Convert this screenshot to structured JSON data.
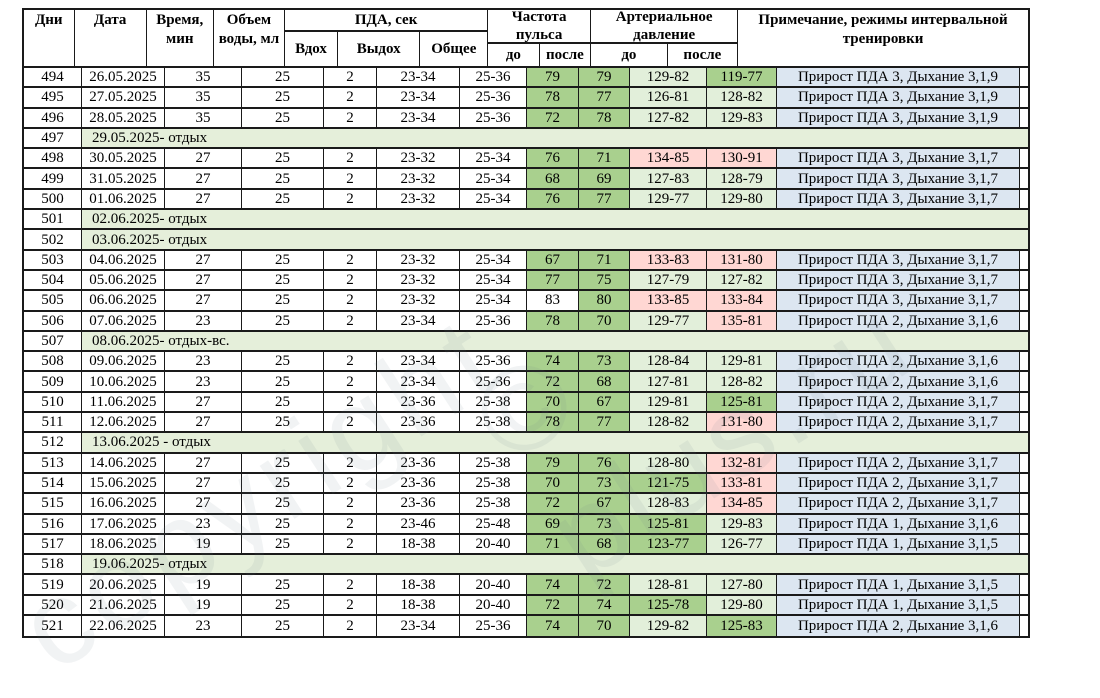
{
  "watermark": {
    "text1": "copyright",
    "text2": "© plus.ru"
  },
  "palette": {
    "pulse_green": "#a9d08e",
    "light_green": "#e2efda",
    "alert_pink": "#ffd7d3",
    "note_blue": "#dce6f1",
    "rest_green": "#e5efda"
  },
  "table": {
    "header": {
      "days": "Дни",
      "date": "Дата",
      "time": "Время, мин",
      "water": "Объем воды, мл",
      "pda_group": "ПДА, сек",
      "inhale": "Вдох",
      "exhale": "Выдох",
      "total": "Общее",
      "pulse_group": "Частота пульса",
      "bp_group": "Артериальное давление",
      "before": "до",
      "after": "после",
      "note": "Примечание, режимы интервальной тренировки"
    },
    "rows": [
      {
        "type": "data",
        "day": "494",
        "date": "26.05.2025",
        "time": "35",
        "water": "25",
        "inhale": "2",
        "exhale": "23-34",
        "total": "25-36",
        "pulse_before": "79",
        "pulse_after": "79",
        "bp_before": "129-82",
        "bp_after": "119-77",
        "note": "Прирост ПДА 3, Дыхание 3,1,9",
        "colors": {
          "pb": "g",
          "pa": "g",
          "bb": "lg",
          "ba": "g"
        }
      },
      {
        "type": "data",
        "day": "495",
        "date": "27.05.2025",
        "time": "35",
        "water": "25",
        "inhale": "2",
        "exhale": "23-34",
        "total": "25-36",
        "pulse_before": "78",
        "pulse_after": "77",
        "bp_before": "126-81",
        "bp_after": "128-82",
        "note": "Прирост ПДА 3, Дыхание 3,1,9",
        "colors": {
          "pb": "g",
          "pa": "g",
          "bb": "lg",
          "ba": "lg"
        }
      },
      {
        "type": "data",
        "day": "496",
        "date": "28.05.2025",
        "time": "35",
        "water": "25",
        "inhale": "2",
        "exhale": "23-34",
        "total": "25-36",
        "pulse_before": "72",
        "pulse_after": "78",
        "bp_before": "127-82",
        "bp_after": "129-83",
        "note": "Прирост ПДА 3, Дыхание 3,1,9",
        "colors": {
          "pb": "g",
          "pa": "g",
          "bb": "lg",
          "ba": "lg"
        }
      },
      {
        "type": "rest",
        "day": "497",
        "text": "29.05.2025- отдых"
      },
      {
        "type": "data",
        "day": "498",
        "date": "30.05.2025",
        "time": "27",
        "water": "25",
        "inhale": "2",
        "exhale": "23-32",
        "total": "25-34",
        "pulse_before": "76",
        "pulse_after": "71",
        "bp_before": "134-85",
        "bp_after": "130-91",
        "note": "Прирост ПДА 3, Дыхание 3,1,7",
        "colors": {
          "pb": "g",
          "pa": "g",
          "bb": "p",
          "ba": "p"
        }
      },
      {
        "type": "data",
        "day": "499",
        "date": "31.05.2025",
        "time": "27",
        "water": "25",
        "inhale": "2",
        "exhale": "23-32",
        "total": "25-34",
        "pulse_before": "68",
        "pulse_after": "69",
        "bp_before": "127-83",
        "bp_after": "128-79",
        "note": "Прирост ПДА 3, Дыхание 3,1,7",
        "colors": {
          "pb": "g",
          "pa": "g",
          "bb": "lg",
          "ba": "lg"
        }
      },
      {
        "type": "data",
        "day": "500",
        "date": "01.06.2025",
        "time": "27",
        "water": "25",
        "inhale": "2",
        "exhale": "23-32",
        "total": "25-34",
        "pulse_before": "76",
        "pulse_after": "77",
        "bp_before": "129-77",
        "bp_after": "129-80",
        "note": "Прирост ПДА 3, Дыхание 3,1,7",
        "colors": {
          "pb": "g",
          "pa": "g",
          "bb": "lg",
          "ba": "lg"
        }
      },
      {
        "type": "rest",
        "day": "501",
        "text": "02.06.2025- отдых"
      },
      {
        "type": "rest",
        "day": "502",
        "text": "03.06.2025- отдых"
      },
      {
        "type": "data",
        "day": "503",
        "date": "04.06.2025",
        "time": "27",
        "water": "25",
        "inhale": "2",
        "exhale": "23-32",
        "total": "25-34",
        "pulse_before": "67",
        "pulse_after": "71",
        "bp_before": "133-83",
        "bp_after": "131-80",
        "note": "Прирост ПДА 3, Дыхание 3,1,7",
        "colors": {
          "pb": "g",
          "pa": "g",
          "bb": "p",
          "ba": "p"
        }
      },
      {
        "type": "data",
        "day": "504",
        "date": "05.06.2025",
        "time": "27",
        "water": "25",
        "inhale": "2",
        "exhale": "23-32",
        "total": "25-34",
        "pulse_before": "77",
        "pulse_after": "75",
        "bp_before": "127-79",
        "bp_after": "127-82",
        "note": "Прирост ПДА 3, Дыхание 3,1,7",
        "colors": {
          "pb": "g",
          "pa": "g",
          "bb": "lg",
          "ba": "lg"
        }
      },
      {
        "type": "data",
        "day": "505",
        "date": "06.06.2025",
        "time": "27",
        "water": "25",
        "inhale": "2",
        "exhale": "23-32",
        "total": "25-34",
        "pulse_before": "83",
        "pulse_after": "80",
        "bp_before": "133-85",
        "bp_after": "133-84",
        "note": "Прирост ПДА 3, Дыхание 3,1,7",
        "colors": {
          "pb": "w",
          "pa": "g",
          "bb": "p",
          "ba": "p"
        }
      },
      {
        "type": "data",
        "day": "506",
        "date": "07.06.2025",
        "time": "23",
        "water": "25",
        "inhale": "2",
        "exhale": "23-34",
        "total": "25-36",
        "pulse_before": "78",
        "pulse_after": "70",
        "bp_before": "129-77",
        "bp_after": "135-81",
        "note": "Прирост ПДА 2, Дыхание 3,1,6",
        "colors": {
          "pb": "g",
          "pa": "g",
          "bb": "lg",
          "ba": "p"
        }
      },
      {
        "type": "rest",
        "day": "507",
        "text": "08.06.2025- отдых-вс."
      },
      {
        "type": "data",
        "day": "508",
        "date": "09.06.2025",
        "time": "23",
        "water": "25",
        "inhale": "2",
        "exhale": "23-34",
        "total": "25-36",
        "pulse_before": "74",
        "pulse_after": "73",
        "bp_before": "128-84",
        "bp_after": "129-81",
        "note": "Прирост ПДА 2, Дыхание 3,1,6",
        "colors": {
          "pb": "g",
          "pa": "g",
          "bb": "lg",
          "ba": "lg"
        }
      },
      {
        "type": "data",
        "day": "509",
        "date": "10.06.2025",
        "time": "23",
        "water": "25",
        "inhale": "2",
        "exhale": "23-34",
        "total": "25-36",
        "pulse_before": "72",
        "pulse_after": "68",
        "bp_before": "127-81",
        "bp_after": "128-82",
        "note": "Прирост ПДА 2, Дыхание 3,1,6",
        "colors": {
          "pb": "g",
          "pa": "g",
          "bb": "lg",
          "ba": "lg"
        }
      },
      {
        "type": "data",
        "day": "510",
        "date": "11.06.2025",
        "time": "27",
        "water": "25",
        "inhale": "2",
        "exhale": "23-36",
        "total": "25-38",
        "pulse_before": "70",
        "pulse_after": "67",
        "bp_before": "129-81",
        "bp_after": "125-81",
        "note": "Прирост ПДА 2, Дыхание 3,1,7",
        "colors": {
          "pb": "g",
          "pa": "g",
          "bb": "lg",
          "ba": "g"
        }
      },
      {
        "type": "data",
        "day": "511",
        "date": "12.06.2025",
        "time": "27",
        "water": "25",
        "inhale": "2",
        "exhale": "23-36",
        "total": "25-38",
        "pulse_before": "78",
        "pulse_after": "77",
        "bp_before": "128-82",
        "bp_after": "131-80",
        "note": "Прирост ПДА 2, Дыхание 3,1,7",
        "colors": {
          "pb": "g",
          "pa": "g",
          "bb": "lg",
          "ba": "p"
        }
      },
      {
        "type": "rest",
        "day": "512",
        "text": "13.06.2025 - отдых"
      },
      {
        "type": "data",
        "day": "513",
        "date": "14.06.2025",
        "time": "27",
        "water": "25",
        "inhale": "2",
        "exhale": "23-36",
        "total": "25-38",
        "pulse_before": "79",
        "pulse_after": "76",
        "bp_before": "128-80",
        "bp_after": "132-81",
        "note": "Прирост ПДА 2, Дыхание 3,1,7",
        "colors": {
          "pb": "g",
          "pa": "g",
          "bb": "lg",
          "ba": "p"
        }
      },
      {
        "type": "data",
        "day": "514",
        "date": "15.06.2025",
        "time": "27",
        "water": "25",
        "inhale": "2",
        "exhale": "23-36",
        "total": "25-38",
        "pulse_before": "70",
        "pulse_after": "73",
        "bp_before": "121-75",
        "bp_after": "133-81",
        "note": "Прирост ПДА 2, Дыхание 3,1,7",
        "colors": {
          "pb": "g",
          "pa": "g",
          "bb": "g",
          "ba": "p"
        }
      },
      {
        "type": "data",
        "day": "515",
        "date": "16.06.2025",
        "time": "27",
        "water": "25",
        "inhale": "2",
        "exhale": "23-36",
        "total": "25-38",
        "pulse_before": "72",
        "pulse_after": "67",
        "bp_before": "128-83",
        "bp_after": "134-85",
        "note": "Прирост ПДА 2, Дыхание 3,1,7",
        "colors": {
          "pb": "g",
          "pa": "g",
          "bb": "lg",
          "ba": "p"
        }
      },
      {
        "type": "data",
        "day": "516",
        "date": "17.06.2025",
        "time": "23",
        "water": "25",
        "inhale": "2",
        "exhale": "23-46",
        "total": "25-48",
        "pulse_before": "69",
        "pulse_after": "73",
        "bp_before": "125-81",
        "bp_after": "129-83",
        "note": "Прирост ПДА 1, Дыхание 3,1,6",
        "colors": {
          "pb": "g",
          "pa": "g",
          "bb": "g",
          "ba": "lg"
        }
      },
      {
        "type": "data",
        "day": "517",
        "date": "18.06.2025",
        "time": "19",
        "water": "25",
        "inhale": "2",
        "exhale": "18-38",
        "total": "20-40",
        "pulse_before": "71",
        "pulse_after": "68",
        "bp_before": "123-77",
        "bp_after": "126-77",
        "note": "Прирост ПДА 1, Дыхание 3,1,5",
        "colors": {
          "pb": "g",
          "pa": "g",
          "bb": "g",
          "ba": "lg"
        }
      },
      {
        "type": "rest",
        "day": "518",
        "text": "19.06.2025- отдых"
      },
      {
        "type": "data",
        "day": "519",
        "date": "20.06.2025",
        "time": "19",
        "water": "25",
        "inhale": "2",
        "exhale": "18-38",
        "total": "20-40",
        "pulse_before": "74",
        "pulse_after": "72",
        "bp_before": "128-81",
        "bp_after": "127-80",
        "note": "Прирост ПДА 1, Дыхание 3,1,5",
        "colors": {
          "pb": "g",
          "pa": "g",
          "bb": "lg",
          "ba": "lg"
        }
      },
      {
        "type": "data",
        "day": "520",
        "date": "21.06.2025",
        "time": "19",
        "water": "25",
        "inhale": "2",
        "exhale": "18-38",
        "total": "20-40",
        "pulse_before": "72",
        "pulse_after": "74",
        "bp_before": "125-78",
        "bp_after": "129-80",
        "note": "Прирост ПДА 1, Дыхание 3,1,5",
        "colors": {
          "pb": "g",
          "pa": "g",
          "bb": "g",
          "ba": "lg"
        }
      },
      {
        "type": "data",
        "day": "521",
        "date": "22.06.2025",
        "time": "23",
        "water": "25",
        "inhale": "2",
        "exhale": "23-34",
        "total": "25-36",
        "pulse_before": "74",
        "pulse_after": "70",
        "bp_before": "129-82",
        "bp_after": "125-83",
        "note": "Прирост ПДА 2, Дыхание 3,1,6",
        "colors": {
          "pb": "g",
          "pa": "g",
          "bb": "lg",
          "ba": "g"
        }
      }
    ]
  }
}
